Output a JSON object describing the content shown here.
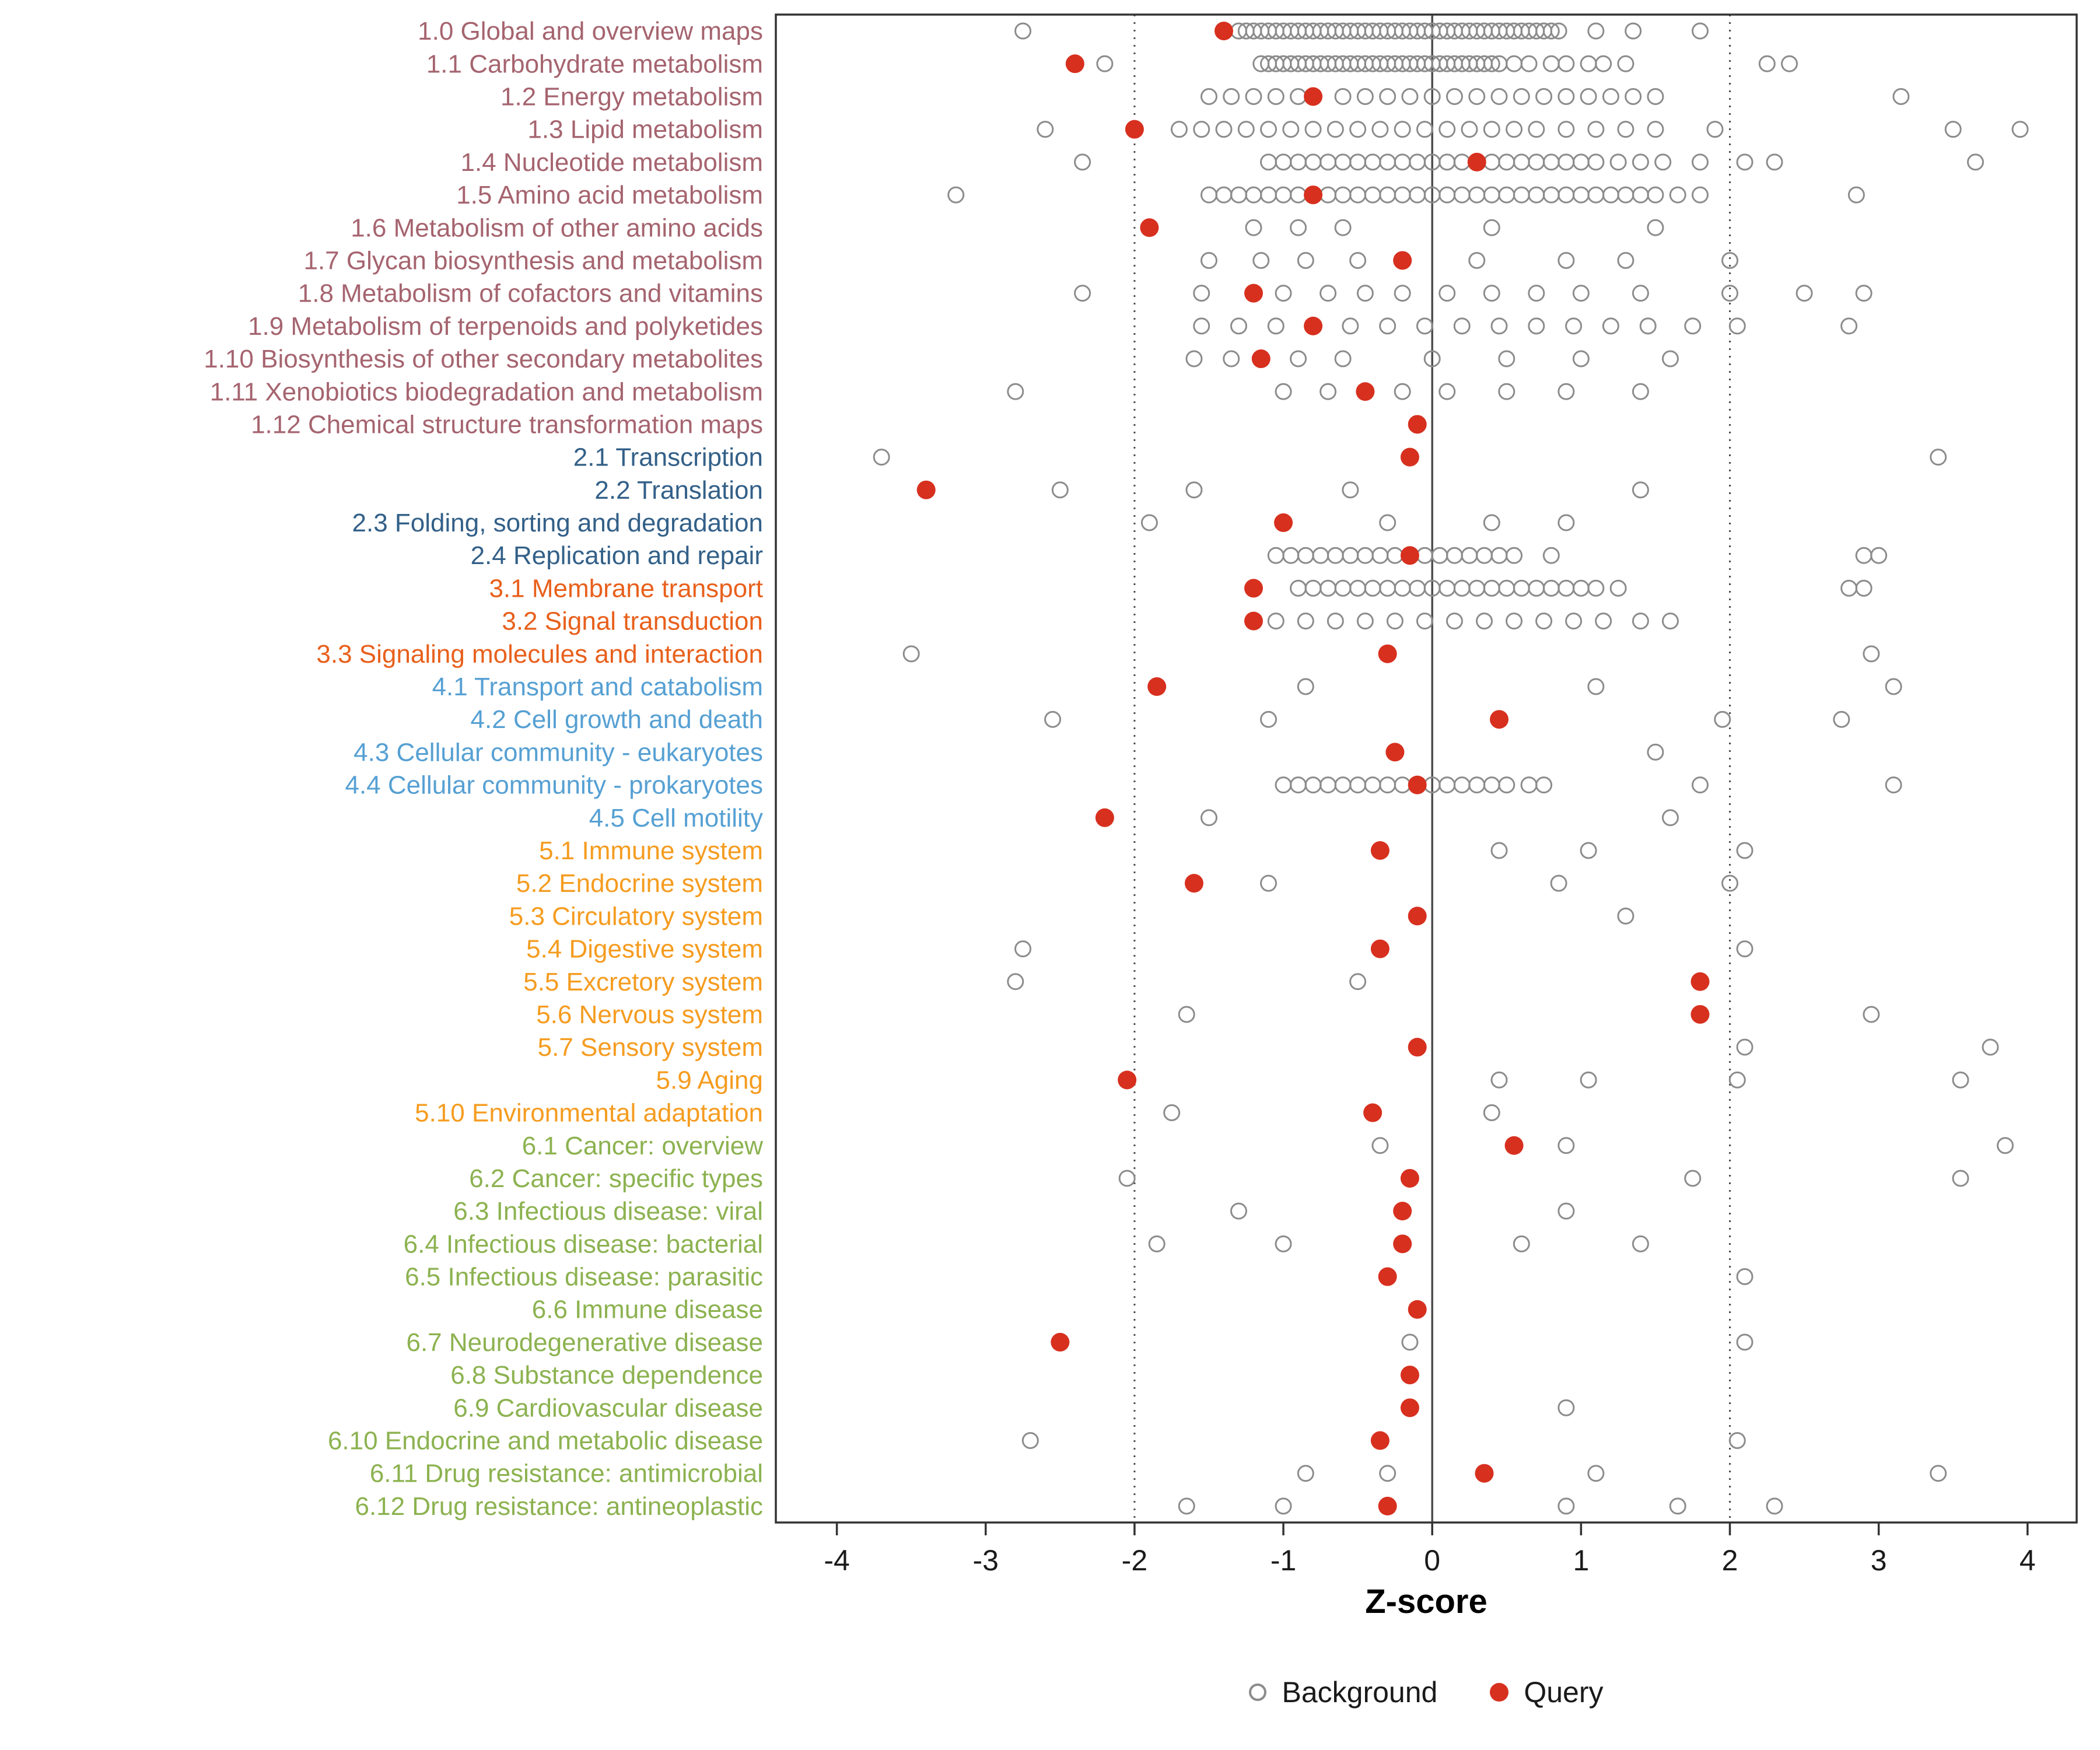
{
  "chart_data": {
    "type": "scatter",
    "title": "",
    "xlabel": "Z-score",
    "ylabel": "",
    "xlim": [
      -4.41,
      4.33
    ],
    "xticks": [
      -4,
      -3,
      -2,
      -1,
      0,
      1,
      2,
      3,
      4
    ],
    "grid": false,
    "legend_position": "bottom",
    "reference_lines": {
      "solid": [
        0
      ],
      "dotted": [
        -2,
        2
      ]
    },
    "legend": [
      {
        "label": "Background",
        "type": "open"
      },
      {
        "label": "Query",
        "type": "filled"
      }
    ],
    "colors": {
      "query": "#d7301f",
      "background_stroke": "#8c8c8c",
      "axis_text": "#1a1a1a",
      "reference_line": "#4d4d4d",
      "panel_border": "#333333",
      "groups": {
        "1": "#a5646f",
        "2": "#336088",
        "3": "#e8601c",
        "4": "#56a0d3",
        "5": "#f59c20",
        "6": "#8cb250"
      }
    },
    "rows": [
      {
        "label": "1.0 Global and overview maps",
        "group": "1",
        "query": -1.4,
        "background": [
          -2.75,
          -1.3,
          -1.25,
          -1.2,
          -1.15,
          -1.1,
          -1.05,
          -1,
          -0.95,
          -0.9,
          -0.85,
          -0.8,
          -0.75,
          -0.7,
          -0.65,
          -0.6,
          -0.55,
          -0.5,
          -0.45,
          -0.4,
          -0.35,
          -0.3,
          -0.25,
          -0.2,
          -0.15,
          -0.1,
          -0.05,
          0,
          0.05,
          0.1,
          0.15,
          0.2,
          0.25,
          0.3,
          0.35,
          0.4,
          0.45,
          0.5,
          0.55,
          0.6,
          0.65,
          0.7,
          0.75,
          0.8,
          0.85,
          1.1,
          1.35,
          1.8
        ]
      },
      {
        "label": "1.1 Carbohydrate metabolism",
        "group": "1",
        "query": -2.4,
        "background": [
          -2.2,
          -1.15,
          -1.1,
          -1.05,
          -1,
          -0.95,
          -0.9,
          -0.85,
          -0.8,
          -0.75,
          -0.7,
          -0.65,
          -0.6,
          -0.55,
          -0.5,
          -0.45,
          -0.4,
          -0.35,
          -0.3,
          -0.25,
          -0.2,
          -0.15,
          -0.1,
          -0.05,
          0,
          0.05,
          0.1,
          0.15,
          0.2,
          0.25,
          0.3,
          0.35,
          0.4,
          0.45,
          0.55,
          0.65,
          0.8,
          0.9,
          1.05,
          1.15,
          1.3,
          2.25,
          2.4
        ]
      },
      {
        "label": "1.2 Energy metabolism",
        "group": "1",
        "query": -0.8,
        "background": [
          -1.5,
          -1.35,
          -1.2,
          -1.05,
          -0.9,
          -0.6,
          -0.45,
          -0.3,
          -0.15,
          0,
          0.15,
          0.3,
          0.45,
          0.6,
          0.75,
          0.9,
          1.05,
          1.2,
          1.35,
          1.5,
          3.15
        ]
      },
      {
        "label": "1.3 Lipid metabolism",
        "group": "1",
        "query": -2.0,
        "background": [
          -2.6,
          -1.7,
          -1.55,
          -1.4,
          -1.25,
          -1.1,
          -0.95,
          -0.8,
          -0.65,
          -0.5,
          -0.35,
          -0.2,
          -0.05,
          0.1,
          0.25,
          0.4,
          0.55,
          0.7,
          0.9,
          1.1,
          1.3,
          1.5,
          1.9,
          3.5,
          3.95
        ]
      },
      {
        "label": "1.4 Nucleotide metabolism",
        "group": "1",
        "query": 0.3,
        "background": [
          -2.35,
          -1.1,
          -1,
          -0.9,
          -0.8,
          -0.7,
          -0.6,
          -0.5,
          -0.4,
          -0.3,
          -0.2,
          -0.1,
          0,
          0.1,
          0.2,
          0.4,
          0.5,
          0.6,
          0.7,
          0.8,
          0.9,
          1,
          1.1,
          1.25,
          1.4,
          1.55,
          1.8,
          2.1,
          2.3,
          3.65
        ]
      },
      {
        "label": "1.5 Amino acid metabolism",
        "group": "1",
        "query": -0.8,
        "background": [
          -3.2,
          -1.5,
          -1.4,
          -1.3,
          -1.2,
          -1.1,
          -1,
          -0.9,
          -0.7,
          -0.6,
          -0.5,
          -0.4,
          -0.3,
          -0.2,
          -0.1,
          0,
          0.1,
          0.2,
          0.3,
          0.4,
          0.5,
          0.6,
          0.7,
          0.8,
          0.9,
          1,
          1.1,
          1.2,
          1.3,
          1.4,
          1.5,
          1.65,
          1.8,
          2.85
        ]
      },
      {
        "label": "1.6 Metabolism of other amino acids",
        "group": "1",
        "query": -1.9,
        "background": [
          -1.2,
          -0.9,
          -0.6,
          0.4,
          1.5
        ]
      },
      {
        "label": "1.7 Glycan biosynthesis and metabolism",
        "group": "1",
        "query": -0.2,
        "background": [
          -1.5,
          -1.15,
          -0.85,
          -0.5,
          0.3,
          0.9,
          1.3,
          2
        ]
      },
      {
        "label": "1.8 Metabolism of cofactors and vitamins",
        "group": "1",
        "query": -1.2,
        "background": [
          -2.35,
          -1.55,
          -1,
          -0.7,
          -0.45,
          -0.2,
          0.1,
          0.4,
          0.7,
          1,
          1.4,
          2,
          2.5,
          2.9
        ]
      },
      {
        "label": "1.9 Metabolism of terpenoids and polyketides",
        "group": "1",
        "query": -0.8,
        "background": [
          -1.55,
          -1.3,
          -1.05,
          -0.55,
          -0.3,
          -0.05,
          0.2,
          0.45,
          0.7,
          0.95,
          1.2,
          1.45,
          1.75,
          2.05,
          2.8
        ]
      },
      {
        "label": "1.10 Biosynthesis of other secondary metabolites",
        "group": "1",
        "query": -1.15,
        "background": [
          -1.6,
          -1.35,
          -0.9,
          -0.6,
          0,
          0.5,
          1,
          1.6
        ]
      },
      {
        "label": "1.11 Xenobiotics biodegradation and metabolism",
        "group": "1",
        "query": -0.45,
        "background": [
          -2.8,
          -1,
          -0.7,
          -0.2,
          0.1,
          0.5,
          0.9,
          1.4
        ]
      },
      {
        "label": "1.12 Chemical structure transformation maps",
        "group": "1",
        "query": -0.1,
        "background": []
      },
      {
        "label": "2.1 Transcription",
        "group": "2",
        "query": -0.15,
        "background": [
          -3.7,
          3.4
        ]
      },
      {
        "label": "2.2 Translation",
        "group": "2",
        "query": -3.4,
        "background": [
          -2.5,
          -1.6,
          -0.55,
          1.4
        ]
      },
      {
        "label": "2.3 Folding, sorting and degradation",
        "group": "2",
        "query": -1.0,
        "background": [
          -1.9,
          -0.3,
          0.4,
          0.9
        ]
      },
      {
        "label": "2.4 Replication and repair",
        "group": "2",
        "query": -0.15,
        "background": [
          -1.05,
          -0.95,
          -0.85,
          -0.75,
          -0.65,
          -0.55,
          -0.45,
          -0.35,
          -0.25,
          -0.05,
          0.05,
          0.15,
          0.25,
          0.35,
          0.45,
          0.55,
          0.8,
          2.9,
          3
        ]
      },
      {
        "label": "3.1 Membrane transport",
        "group": "3",
        "query": -1.2,
        "background": [
          -0.9,
          -0.8,
          -0.7,
          -0.6,
          -0.5,
          -0.4,
          -0.3,
          -0.2,
          -0.1,
          0,
          0.1,
          0.2,
          0.3,
          0.4,
          0.5,
          0.6,
          0.7,
          0.8,
          0.9,
          1,
          1.1,
          1.25,
          2.8,
          2.9
        ]
      },
      {
        "label": "3.2 Signal transduction",
        "group": "3",
        "query": -1.2,
        "background": [
          -1.05,
          -0.85,
          -0.65,
          -0.45,
          -0.25,
          -0.05,
          0.15,
          0.35,
          0.55,
          0.75,
          0.95,
          1.15,
          1.4,
          1.6
        ]
      },
      {
        "label": "3.3 Signaling molecules and interaction",
        "group": "3",
        "query": -0.3,
        "background": [
          -3.5,
          2.95
        ]
      },
      {
        "label": "4.1 Transport and catabolism",
        "group": "4",
        "query": -1.85,
        "background": [
          -0.85,
          1.1,
          3.1
        ]
      },
      {
        "label": "4.2 Cell growth and death",
        "group": "4",
        "query": 0.45,
        "background": [
          -2.55,
          -1.1,
          1.95,
          2.75
        ]
      },
      {
        "label": "4.3 Cellular community - eukaryotes",
        "group": "4",
        "query": -0.25,
        "background": [
          1.5
        ]
      },
      {
        "label": "4.4 Cellular community - prokaryotes",
        "group": "4",
        "query": -0.1,
        "background": [
          -1,
          -0.9,
          -0.8,
          -0.7,
          -0.6,
          -0.5,
          -0.4,
          -0.3,
          -0.2,
          -0.1,
          0,
          0.1,
          0.2,
          0.3,
          0.4,
          0.5,
          0.65,
          0.75,
          1.8,
          3.1
        ]
      },
      {
        "label": "4.5 Cell motility",
        "group": "4",
        "query": -2.2,
        "background": [
          -1.5,
          1.6
        ]
      },
      {
        "label": "5.1 Immune system",
        "group": "5",
        "query": -0.35,
        "background": [
          0.45,
          1.05,
          2.1
        ]
      },
      {
        "label": "5.2 Endocrine system",
        "group": "5",
        "query": -1.6,
        "background": [
          -1.1,
          0.85,
          2
        ]
      },
      {
        "label": "5.3 Circulatory system",
        "group": "5",
        "query": -0.1,
        "background": [
          1.3
        ]
      },
      {
        "label": "5.4 Digestive system",
        "group": "5",
        "query": -0.35,
        "background": [
          -2.75,
          2.1
        ]
      },
      {
        "label": "5.5 Excretory system",
        "group": "5",
        "query": 1.8,
        "background": [
          -2.8,
          -0.5
        ]
      },
      {
        "label": "5.6 Nervous system",
        "group": "5",
        "query": 1.8,
        "background": [
          -1.65,
          2.95
        ]
      },
      {
        "label": "5.7 Sensory system",
        "group": "5",
        "query": -0.1,
        "background": [
          2.1,
          3.75
        ]
      },
      {
        "label": "5.9 Aging",
        "group": "5",
        "query": -2.05,
        "background": [
          0.45,
          1.05,
          2.05,
          3.55
        ]
      },
      {
        "label": "5.10 Environmental adaptation",
        "group": "5",
        "query": -0.4,
        "background": [
          -1.75,
          0.4
        ]
      },
      {
        "label": "6.1 Cancer: overview",
        "group": "6",
        "query": 0.55,
        "background": [
          -0.35,
          0.9,
          3.85
        ]
      },
      {
        "label": "6.2 Cancer: specific types",
        "group": "6",
        "query": -0.15,
        "background": [
          -2.05,
          1.75,
          3.55
        ]
      },
      {
        "label": "6.3 Infectious disease: viral",
        "group": "6",
        "query": -0.2,
        "background": [
          -1.3,
          0.9
        ]
      },
      {
        "label": "6.4 Infectious disease: bacterial",
        "group": "6",
        "query": -0.2,
        "background": [
          -1.85,
          -1,
          0.6,
          1.4
        ]
      },
      {
        "label": "6.5 Infectious disease: parasitic",
        "group": "6",
        "query": -0.3,
        "background": [
          2.1
        ]
      },
      {
        "label": "6.6 Immune disease",
        "group": "6",
        "query": -0.1,
        "background": []
      },
      {
        "label": "6.7 Neurodegenerative disease",
        "group": "6",
        "query": -2.5,
        "background": [
          -0.15,
          2.1
        ]
      },
      {
        "label": "6.8 Substance dependence",
        "group": "6",
        "query": -0.15,
        "background": []
      },
      {
        "label": "6.9 Cardiovascular disease",
        "group": "6",
        "query": -0.15,
        "background": [
          0.9
        ]
      },
      {
        "label": "6.10 Endocrine and metabolic disease",
        "group": "6",
        "query": -0.35,
        "background": [
          -2.7,
          2.05
        ]
      },
      {
        "label": "6.11 Drug resistance: antimicrobial",
        "group": "6",
        "query": 0.35,
        "background": [
          -0.85,
          -0.3,
          1.1,
          3.4
        ]
      },
      {
        "label": "6.12 Drug resistance: antineoplastic",
        "group": "6",
        "query": -0.3,
        "background": [
          -1.65,
          -1,
          0.9,
          1.65,
          2.3
        ]
      }
    ]
  }
}
